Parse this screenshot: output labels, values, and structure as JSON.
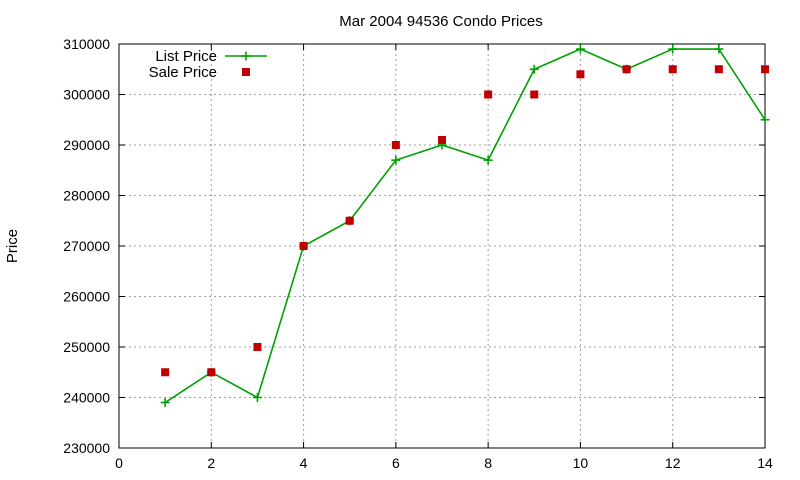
{
  "chart_data": {
    "type": "line",
    "title": "Mar 2004 94536 Condo Prices",
    "xlabel": "",
    "ylabel": "Price",
    "xlim": [
      0,
      14
    ],
    "ylim": [
      230000,
      310000
    ],
    "xticks": [
      0,
      2,
      4,
      6,
      8,
      10,
      12,
      14
    ],
    "yticks": [
      230000,
      240000,
      250000,
      260000,
      270000,
      280000,
      290000,
      300000,
      310000
    ],
    "grid": true,
    "legend_position": "top-left",
    "series": [
      {
        "name": "List Price",
        "style": "line-with-plus-markers",
        "color": "#00a000",
        "x": [
          1,
          2,
          3,
          4,
          5,
          6,
          7,
          8,
          9,
          10,
          11,
          12,
          13,
          14
        ],
        "y": [
          239000,
          245000,
          240000,
          270000,
          275000,
          287000,
          290000,
          287000,
          305000,
          309000,
          305000,
          309000,
          309000,
          295000
        ]
      },
      {
        "name": "Sale Price",
        "style": "square-points",
        "color": "#c00000",
        "x": [
          1,
          2,
          3,
          4,
          5,
          6,
          7,
          8,
          9,
          10,
          11,
          12,
          13,
          14
        ],
        "y": [
          245000,
          245000,
          250000,
          270000,
          275000,
          290000,
          291000,
          300000,
          300000,
          304000,
          305000,
          305000,
          305000,
          305000
        ]
      }
    ]
  }
}
